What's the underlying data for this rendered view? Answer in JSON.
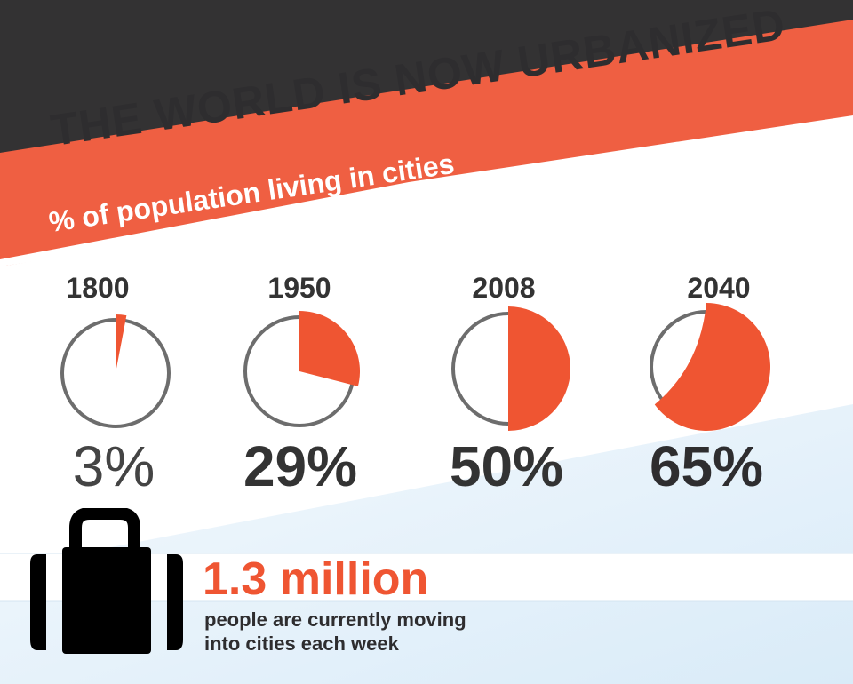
{
  "title": "THE WORLD IS NOW URBANIZED",
  "subtitle": "% of population living in cities",
  "colors": {
    "accent": "#ef5532",
    "dark": "#333233",
    "band": "#f06040",
    "ring": "#6d6d6d",
    "light_blue": "#e4f1fb"
  },
  "chart_data": {
    "type": "pie",
    "categories": [
      "1800",
      "1950",
      "2008",
      "2040"
    ],
    "values": [
      3,
      29,
      50,
      65
    ],
    "value_labels": [
      "3%",
      "29%",
      "50%",
      "65%"
    ],
    "unit": "%"
  },
  "stat": {
    "number": "1.3 million",
    "description_line1": "people are currently moving",
    "description_line2": "into cities each week",
    "icon": "suitcase-icon"
  }
}
